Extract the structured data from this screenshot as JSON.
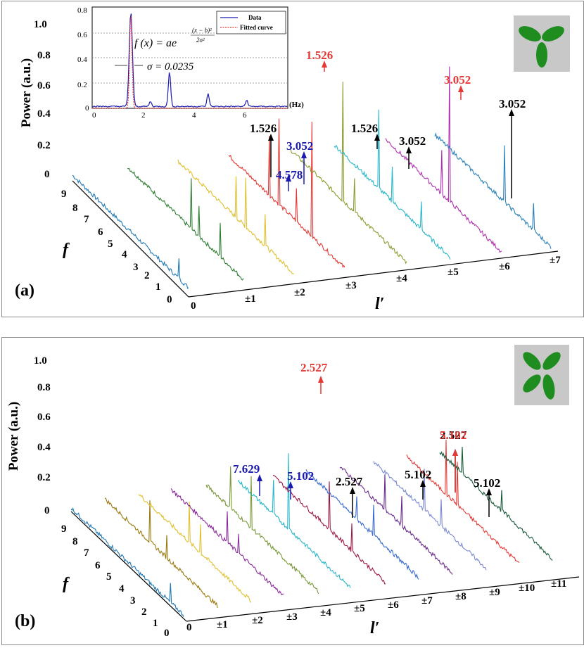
{
  "chart_data": [
    {
      "type": "line",
      "panel_label": "(a)",
      "ylabel": "Power (a.u.)",
      "xlabel": "l′",
      "zlabel": "f",
      "y_ticks": [
        "0",
        "0.2",
        "0.4",
        "0.6",
        "0.8",
        "1.0"
      ],
      "f_ticks": [
        "0",
        "1",
        "2",
        "3",
        "4",
        "5",
        "6",
        "7",
        "8",
        "9"
      ],
      "l_ticks": [
        "0",
        "±1",
        "±2",
        "±3",
        "±4",
        "±5",
        "±6",
        "±7"
      ],
      "series_colors": [
        "#1f77b4",
        "#2e7d32",
        "#e0c030",
        "#e53935",
        "#8a9a2e",
        "#29b6c8",
        "#b030b0",
        "#2a80b8"
      ],
      "peaks": [
        {
          "value": "1.526",
          "color": "#e53935"
        },
        {
          "value": "3.052",
          "color": "#e53935"
        },
        {
          "value": "1.526",
          "color": "#000000"
        },
        {
          "value": "3.052",
          "color": "#1a1ab0"
        },
        {
          "value": "4.578",
          "color": "#1a1ab0"
        },
        {
          "value": "1.526",
          "color": "#000000"
        },
        {
          "value": "3.052",
          "color": "#000000"
        },
        {
          "value": "3.052",
          "color": "#000000"
        }
      ],
      "icon_color": "#1e8c1e",
      "inset": {
        "x_ticks": [
          "0",
          "2",
          "4",
          "6"
        ],
        "x_unit": "(Hz)",
        "y_ticks": [
          "0",
          "0.2",
          "0.4",
          "0.6",
          "0.8"
        ],
        "legend": [
          "Data",
          "Fitted curve"
        ],
        "formula": "f (x) = ae",
        "exponent_num": "(x − b)²",
        "exponent_den": "2σ²",
        "sigma": "σ = 0.0235"
      }
    },
    {
      "type": "line",
      "panel_label": "(b)",
      "ylabel": "Power (a.u.)",
      "xlabel": "l′",
      "zlabel": "f",
      "y_ticks": [
        "0",
        "0.2",
        "0.4",
        "0.6",
        "0.8",
        "1.0"
      ],
      "f_ticks": [
        "0",
        "1",
        "2",
        "3",
        "4",
        "5",
        "6",
        "7",
        "8",
        "9"
      ],
      "l_ticks": [
        "0",
        "±1",
        "±2",
        "±3",
        "±4",
        "±5",
        "±6",
        "±7",
        "±8",
        "±9",
        "±10",
        "±11"
      ],
      "series_colors": [
        "#1f77b4",
        "#9a7a10",
        "#e0c030",
        "#8a2a9a",
        "#7a9a3a",
        "#29b6c8",
        "#9a1a4a",
        "#3a6ad0",
        "#6a2a8a",
        "#7a8ad0",
        "#e53935",
        "#1a5a3a"
      ],
      "peaks": [
        {
          "value": "2.527",
          "color": "#e53935"
        },
        {
          "value": "2.527",
          "color": "#000000"
        },
        {
          "value": "7.629",
          "color": "#1a1ab0"
        },
        {
          "value": "5.102",
          "color": "#1a1ab0"
        },
        {
          "value": "2.527",
          "color": "#000000"
        },
        {
          "value": "5.102",
          "color": "#e53935"
        },
        {
          "value": "5.102",
          "color": "#000000"
        },
        {
          "value": "5.102",
          "color": "#000000"
        }
      ],
      "icon_color": "#1e8c1e"
    }
  ]
}
